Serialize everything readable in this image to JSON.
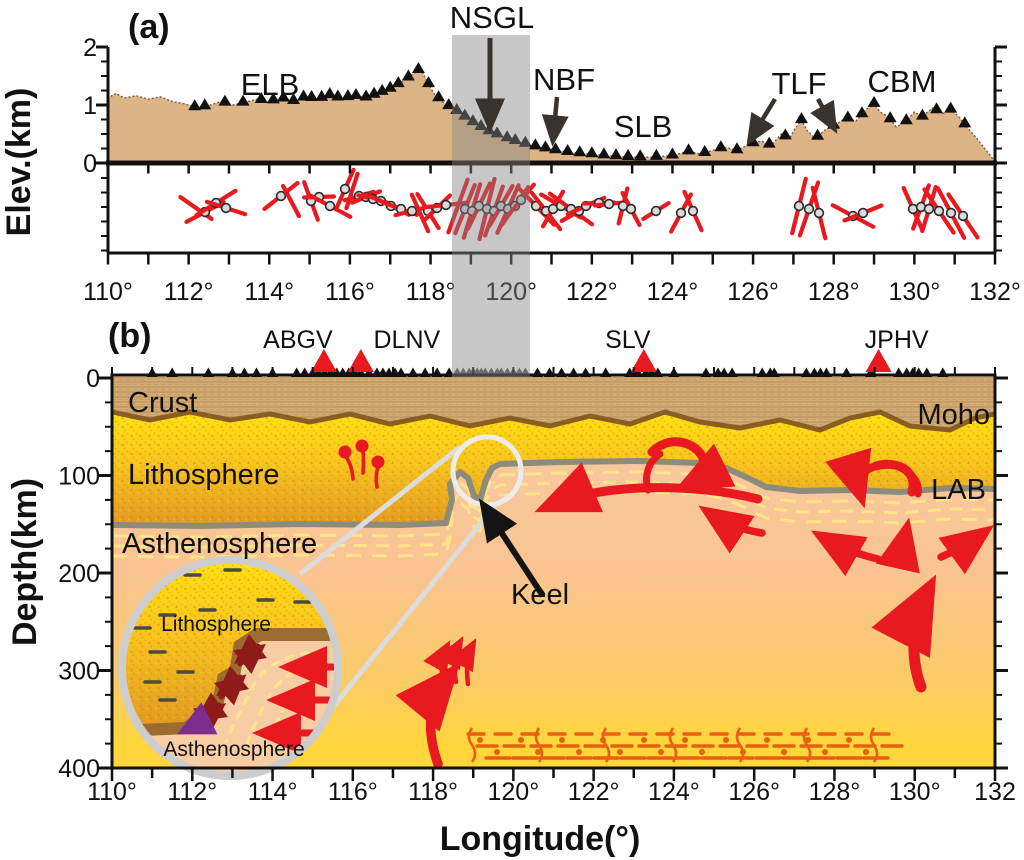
{
  "figure": {
    "title_a": "(a)",
    "title_b": "(b)"
  },
  "panel_a": {
    "label": "(a)",
    "ylabel": "Elev.(km)",
    "ytick_labels": [
      "2",
      "1",
      "0"
    ],
    "xtick_labels": [
      "110°",
      "112°",
      "114°",
      "116°",
      "118°",
      "120°",
      "122°",
      "124°",
      "126°",
      "128°",
      "130°",
      "132°"
    ],
    "region_labels": {
      "elb": "ELB",
      "nsgl": "NSGL",
      "nbf": "NBF",
      "slb": "SLB",
      "tlf": "TLF",
      "cbm": "CBM"
    },
    "profile": [
      [
        110,
        1.12
      ],
      [
        110.2,
        1.2
      ],
      [
        110.4,
        1.12
      ],
      [
        110.7,
        1.16
      ],
      [
        111,
        1.1
      ],
      [
        111.3,
        1.14
      ],
      [
        111.6,
        1.06
      ],
      [
        111.9,
        1.02
      ],
      [
        112.2,
        0.95
      ],
      [
        112.5,
        0.99
      ],
      [
        112.8,
        1.06
      ],
      [
        113.1,
        1.0
      ],
      [
        113.4,
        1.05
      ],
      [
        113.7,
        1.1
      ],
      [
        114,
        1.06
      ],
      [
        114.3,
        1.12
      ],
      [
        114.6,
        1.07
      ],
      [
        114.9,
        1.14
      ],
      [
        115.2,
        1.1
      ],
      [
        115.5,
        1.17
      ],
      [
        115.8,
        1.11
      ],
      [
        116.1,
        1.16
      ],
      [
        116.4,
        1.13
      ],
      [
        116.7,
        1.2
      ],
      [
        117,
        1.28
      ],
      [
        117.3,
        1.4
      ],
      [
        117.6,
        1.55
      ],
      [
        117.75,
        1.63
      ],
      [
        117.9,
        1.42
      ],
      [
        118.1,
        1.18
      ],
      [
        118.35,
        1.02
      ],
      [
        118.6,
        0.92
      ],
      [
        118.85,
        0.8
      ],
      [
        119.1,
        0.68
      ],
      [
        119.4,
        0.56
      ],
      [
        119.7,
        0.48
      ],
      [
        120,
        0.4
      ],
      [
        120.3,
        0.34
      ],
      [
        120.7,
        0.27
      ],
      [
        121.1,
        0.22
      ],
      [
        121.5,
        0.18
      ],
      [
        122,
        0.15
      ],
      [
        122.5,
        0.12
      ],
      [
        123,
        0.1
      ],
      [
        123.5,
        0.1
      ],
      [
        124,
        0.13
      ],
      [
        124.4,
        0.2
      ],
      [
        124.7,
        0.15
      ],
      [
        125,
        0.22
      ],
      [
        125.3,
        0.27
      ],
      [
        125.6,
        0.22
      ],
      [
        125.9,
        0.32
      ],
      [
        126.2,
        0.38
      ],
      [
        126.45,
        0.3
      ],
      [
        126.7,
        0.5
      ],
      [
        126.9,
        0.42
      ],
      [
        127.05,
        0.6
      ],
      [
        127.2,
        0.74
      ],
      [
        127.35,
        0.55
      ],
      [
        127.55,
        0.42
      ],
      [
        127.8,
        0.58
      ],
      [
        128.05,
        0.66
      ],
      [
        128.3,
        0.78
      ],
      [
        128.55,
        0.72
      ],
      [
        128.8,
        0.92
      ],
      [
        129,
        1.02
      ],
      [
        129.15,
        0.88
      ],
      [
        129.35,
        0.8
      ],
      [
        129.55,
        0.62
      ],
      [
        129.8,
        0.72
      ],
      [
        130,
        0.88
      ],
      [
        130.2,
        0.8
      ],
      [
        130.45,
        0.95
      ],
      [
        130.7,
        0.85
      ],
      [
        130.9,
        0.92
      ],
      [
        131.1,
        0.8
      ],
      [
        131.3,
        0.62
      ],
      [
        131.55,
        0.42
      ],
      [
        131.8,
        0.2
      ],
      [
        132,
        0.02
      ]
    ],
    "stations": [
      112.15,
      112.4,
      112.9,
      113.35,
      113.8,
      114.1,
      114.35,
      114.6,
      114.85,
      115.05,
      115.3,
      115.5,
      115.7,
      115.95,
      116.15,
      116.4,
      116.6,
      116.8,
      117.0,
      117.2,
      117.45,
      117.7,
      117.95,
      118.2,
      118.45,
      118.65,
      118.85,
      119.05,
      119.25,
      119.45,
      119.65,
      119.9,
      120.1,
      120.35,
      120.6,
      120.85,
      121.1,
      121.4,
      121.7,
      122.0,
      122.3,
      122.6,
      122.9,
      123.2,
      123.6,
      124.0,
      124.4,
      124.8,
      125.2,
      125.6,
      126.0,
      126.4,
      126.8,
      127.2,
      127.6,
      128.0,
      128.35,
      128.7,
      129.0,
      129.4,
      129.8,
      130.2,
      130.55,
      130.9,
      131.25
    ],
    "splitting_bars": [
      [
        196,
        208,
        -35,
        38,
        0
      ],
      [
        205,
        212,
        28,
        42,
        1
      ],
      [
        216,
        203,
        32,
        46,
        1
      ],
      [
        226,
        208,
        -18,
        40,
        1
      ],
      [
        281,
        196,
        38,
        42,
        1
      ],
      [
        291,
        201,
        -62,
        34,
        0
      ],
      [
        311,
        201,
        -70,
        40,
        1
      ],
      [
        319,
        197,
        2,
        30,
        1
      ],
      [
        330,
        206,
        -28,
        46,
        1
      ],
      [
        345,
        189,
        66,
        42,
        1
      ],
      [
        352,
        191,
        72,
        36,
        0
      ],
      [
        359,
        196,
        16,
        30,
        1
      ],
      [
        366,
        197,
        22,
        30,
        1
      ],
      [
        373,
        199,
        -14,
        30,
        1
      ],
      [
        381,
        201,
        -22,
        36,
        1
      ],
      [
        391,
        206,
        -26,
        40,
        1
      ],
      [
        401,
        209,
        -20,
        34,
        1
      ],
      [
        412,
        211,
        14,
        34,
        1
      ],
      [
        420,
        213,
        -66,
        40,
        0
      ],
      [
        428,
        211,
        -58,
        40,
        1
      ],
      [
        437,
        208,
        44,
        36,
        1
      ],
      [
        446,
        205,
        6,
        44,
        1
      ],
      [
        458,
        206,
        70,
        56,
        0
      ],
      [
        465,
        209,
        68,
        52,
        1
      ],
      [
        472,
        211,
        73,
        56,
        1
      ],
      [
        479,
        206,
        64,
        50,
        1
      ],
      [
        487,
        209,
        76,
        62,
        1
      ],
      [
        494,
        211,
        70,
        52,
        1
      ],
      [
        501,
        206,
        60,
        46,
        1
      ],
      [
        508,
        209,
        66,
        52,
        1
      ],
      [
        515,
        206,
        55,
        46,
        1
      ],
      [
        521,
        200,
        50,
        40,
        1
      ],
      [
        536,
        206,
        -46,
        52,
        1
      ],
      [
        546,
        211,
        -52,
        46,
        1
      ],
      [
        553,
        209,
        60,
        40,
        1
      ],
      [
        561,
        206,
        -30,
        46,
        1
      ],
      [
        571,
        209,
        -36,
        52,
        1
      ],
      [
        579,
        211,
        30,
        40,
        1
      ],
      [
        586,
        206,
        24,
        40,
        1
      ],
      [
        599,
        203,
        2,
        30,
        1
      ],
      [
        609,
        204,
        6,
        28,
        1
      ],
      [
        623,
        206,
        76,
        36,
        1
      ],
      [
        631,
        209,
        -62,
        36,
        1
      ],
      [
        656,
        211,
        32,
        30,
        1
      ],
      [
        681,
        213,
        62,
        42,
        1
      ],
      [
        693,
        211,
        -66,
        42,
        1
      ],
      [
        799,
        206,
        76,
        56,
        1
      ],
      [
        809,
        209,
        71,
        56,
        1
      ],
      [
        819,
        213,
        -76,
        52,
        1
      ],
      [
        853,
        216,
        -28,
        46,
        1
      ],
      [
        863,
        213,
        22,
        40,
        1
      ],
      [
        913,
        209,
        -66,
        46,
        1
      ],
      [
        921,
        207,
        70,
        46,
        1
      ],
      [
        929,
        209,
        73,
        46,
        1
      ],
      [
        939,
        211,
        -56,
        52,
        1
      ],
      [
        951,
        213,
        -62,
        56,
        1
      ],
      [
        963,
        216,
        -56,
        52,
        1
      ]
    ]
  },
  "panel_b": {
    "label": "(b)",
    "ylabel": "Depth(km)",
    "xlabel": "Longitude(°)",
    "ytick_labels": [
      "0",
      "100",
      "200",
      "300",
      "400"
    ],
    "xtick_labels": [
      "110°",
      "112°",
      "114°",
      "116°",
      "118°",
      "120°",
      "122°",
      "124°",
      "126°",
      "128°",
      "130°",
      "132"
    ],
    "layer_labels": {
      "crust": "Crust",
      "lithosphere": "Lithosphere",
      "asthenosphere": "Asthenosphere",
      "moho": "Moho",
      "lab": "LAB",
      "keel": "Keel"
    },
    "volcanoes": [
      {
        "name": "ABGV",
        "lon": 115.28,
        "label_dx": -26
      },
      {
        "name": "DLNV",
        "lon": 116.2,
        "label_dx": 46
      },
      {
        "name": "SLV",
        "lon": 123.25,
        "label_dx": -16
      },
      {
        "name": "JPHV",
        "lon": 129.1,
        "label_dx": 18
      }
    ],
    "stations": [
      111.0,
      111.5,
      112.4,
      113.0,
      113.3,
      113.6,
      114.0,
      114.6,
      114.8,
      115.0,
      115.15,
      115.3,
      115.45,
      115.6,
      115.75,
      115.9,
      116.05,
      116.2,
      116.4,
      116.6,
      116.75,
      116.9,
      117.05,
      117.2,
      117.5,
      117.8,
      118.1,
      118.4,
      118.6,
      118.75,
      118.9,
      119.0,
      119.1,
      119.2,
      119.3,
      119.45,
      119.6,
      119.7,
      119.85,
      120.0,
      120.15,
      120.3,
      120.6,
      120.9,
      121.2,
      121.5,
      121.8,
      122.3,
      122.9,
      123.1,
      123.3,
      123.45,
      123.6,
      124.0,
      124.8,
      125.1,
      125.25,
      125.45,
      126.2,
      126.4,
      126.5,
      127.3,
      127.5,
      127.65,
      127.8,
      128.3,
      128.9,
      129.6,
      129.8,
      129.95,
      130.1,
      130.3,
      130.7
    ],
    "gray_station_range": [
      118.55,
      120.35
    ],
    "inset": {
      "lithosphere": "Lithosphere",
      "asthenosphere": "Asthenosphere"
    }
  },
  "colors": {
    "red": "#e8191f",
    "maroon": "#8e1a1a",
    "purple": "#7c2e8e",
    "tan_fill": "#ddb486",
    "tan_edge": "#7a5c34",
    "crust": "#d2aa74",
    "crust_line": "#b98f58",
    "crust_bottom": "#8a5e22",
    "litho_top": "#ffe214",
    "litho_bottom": "#e09a25",
    "asth_top": "#f8cba6",
    "asth_mid": "#f9c491",
    "asth_yellow": "#ffd73a",
    "lab_gray": "#8d8b7a",
    "dash_yellow": "#ffe68a",
    "melt_orange": "#e8600f",
    "band_gray": "#828282",
    "circle_fill": "#d9d9d9",
    "station_black": "#111111",
    "station_gray": "#5e5e5e",
    "ring_gray": "#cdcdcd",
    "callout_gray": "#dcdcdc",
    "keel_brown": "#9c6b2f",
    "annotation_arrow": "#3a342e"
  }
}
